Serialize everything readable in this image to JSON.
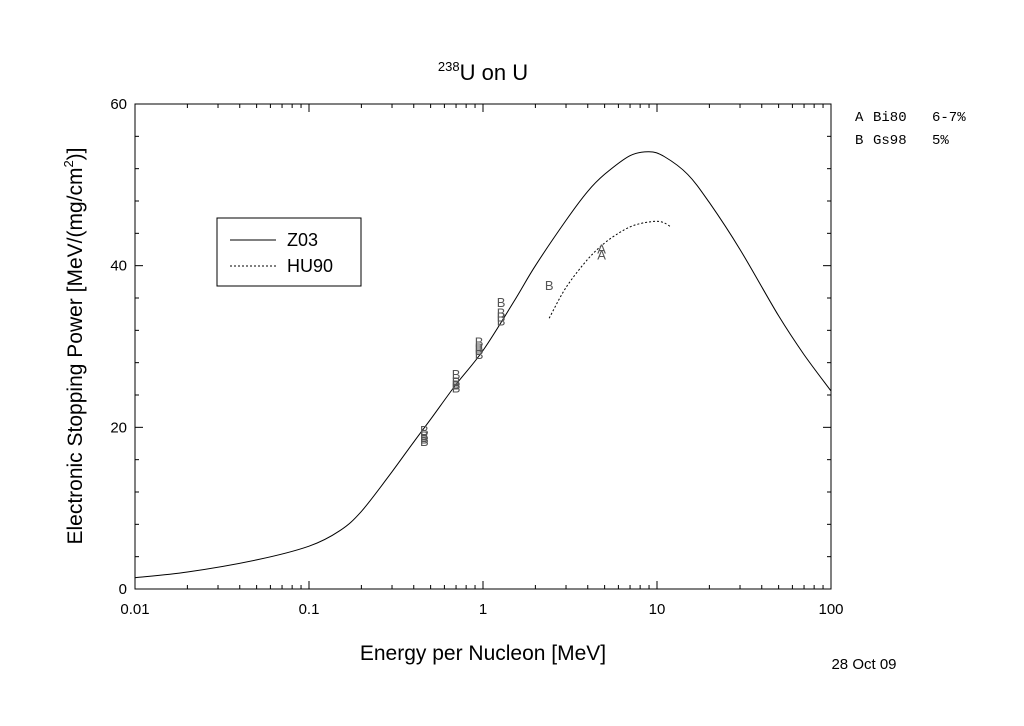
{
  "chart_data": {
    "type": "line",
    "title_prefix": "238",
    "title_main": "U on U",
    "xlabel": "Energy per Nucleon [MeV]",
    "ylabel": "Electronic Stopping Power [MeV/(mg/cm",
    "ylabel_sup": "2",
    "ylabel_suffix": ")]",
    "xscale": "log",
    "xlim": [
      0.01,
      100
    ],
    "ylim": [
      0,
      60
    ],
    "x_ticks": [
      0.01,
      0.1,
      1,
      10,
      100
    ],
    "x_tick_labels": [
      "0.01",
      "0.1",
      "1",
      "10",
      "100"
    ],
    "y_ticks": [
      0,
      20,
      40,
      60
    ],
    "y_tick_labels": [
      "0",
      "20",
      "40",
      "60"
    ],
    "grid": false,
    "legend_position": "upper-left",
    "series": [
      {
        "name": "Z03",
        "style": "solid",
        "x": [
          0.01,
          0.02,
          0.05,
          0.1,
          0.15,
          0.2,
          0.3,
          0.4,
          0.5,
          0.7,
          1,
          1.5,
          2,
          3,
          4,
          5,
          7,
          9,
          11,
          15,
          20,
          30,
          50,
          70,
          100
        ],
        "y": [
          1.4,
          2.1,
          3.6,
          5.3,
          7.2,
          9.6,
          14.5,
          18.2,
          21.0,
          25.3,
          29.5,
          35.5,
          40.0,
          45.6,
          49.2,
          51.3,
          53.6,
          54.1,
          53.5,
          51.3,
          47.8,
          42.0,
          33.8,
          29.0,
          24.5
        ]
      },
      {
        "name": "HU90",
        "style": "dotted",
        "x": [
          2.4,
          3,
          4,
          5,
          6,
          7,
          8,
          9,
          10,
          11,
          12
        ],
        "y": [
          33.5,
          37.3,
          40.8,
          42.8,
          44.0,
          44.8,
          45.2,
          45.4,
          45.5,
          45.3,
          44.8
        ]
      }
    ],
    "data_points": [
      {
        "label": "A",
        "x": 4.8,
        "y": 42.1
      },
      {
        "label": "A",
        "x": 4.8,
        "y": 41.4
      },
      {
        "label": "B",
        "x": 2.4,
        "y": 37.6
      },
      {
        "label": "B",
        "x": 0.46,
        "y": 19.7
      },
      {
        "label": "B",
        "x": 0.46,
        "y": 19.0
      },
      {
        "label": "B",
        "x": 0.46,
        "y": 18.6
      },
      {
        "label": "B",
        "x": 0.46,
        "y": 18.3
      },
      {
        "label": "B",
        "x": 0.7,
        "y": 26.6
      },
      {
        "label": "B",
        "x": 0.7,
        "y": 25.7
      },
      {
        "label": "B",
        "x": 0.7,
        "y": 25.3
      },
      {
        "label": "B",
        "x": 0.7,
        "y": 24.9
      },
      {
        "label": "B",
        "x": 0.95,
        "y": 30.6
      },
      {
        "label": "B",
        "x": 0.95,
        "y": 29.9
      },
      {
        "label": "B",
        "x": 0.95,
        "y": 29.6
      },
      {
        "label": "B",
        "x": 0.95,
        "y": 29.1
      },
      {
        "label": "B",
        "x": 1.27,
        "y": 35.5
      },
      {
        "label": "B",
        "x": 1.27,
        "y": 34.2
      },
      {
        "label": "B",
        "x": 1.27,
        "y": 33.7
      },
      {
        "label": "B",
        "x": 1.27,
        "y": 33.2
      }
    ],
    "references": [
      {
        "label": "A",
        "name": "Bi80",
        "uncertainty": "6-7%"
      },
      {
        "label": "B",
        "name": "Gs98",
        "uncertainty": "5%"
      }
    ],
    "date": "28 Oct 09"
  }
}
